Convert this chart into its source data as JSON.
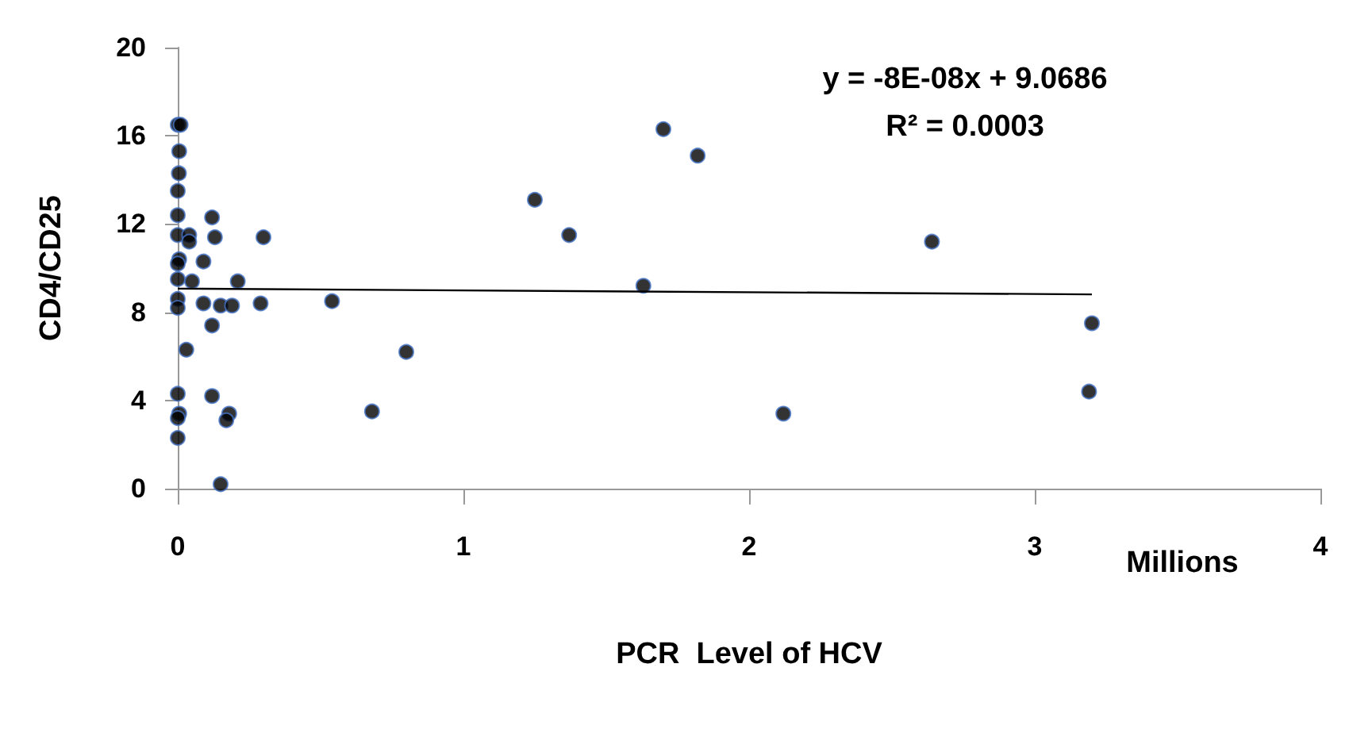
{
  "chart_data": {
    "type": "scatter",
    "xlabel": "PCR  Level of HCV",
    "ylabel": "CD4/CD25",
    "xlim": [
      0,
      4
    ],
    "xticks": [
      0,
      1,
      2,
      3,
      4
    ],
    "ylim": [
      0,
      20
    ],
    "yticks": [
      0,
      4,
      8,
      12,
      16,
      20
    ],
    "grid": false,
    "marker": "circle",
    "annotations": [
      "y = -8E-08x + 9.0686",
      "R² = 0.0003",
      "Millions"
    ],
    "series": [
      {
        "color": "#000000",
        "x": [
          0,
          0.01,
          0.005,
          0.004,
          0,
          0,
          0.12,
          0,
          0.04,
          0.04,
          0.13,
          0.3,
          0.005,
          0,
          0.09,
          0,
          0.05,
          0.21,
          0,
          0,
          0.09,
          0.15,
          0.19,
          0.29,
          0.54,
          0.12,
          0.03,
          0.8,
          0,
          0.12,
          0.005,
          0,
          0.18,
          0.17,
          0.68,
          0,
          0.15,
          1.25,
          1.37,
          1.7,
          1.82,
          1.63,
          2.12,
          2.64,
          3.2,
          3.19
        ],
        "values": [
          16.5,
          16.5,
          15.3,
          14.3,
          13.5,
          12.4,
          12.3,
          11.5,
          11.5,
          11.2,
          11.4,
          11.4,
          10.4,
          10.2,
          10.3,
          9.5,
          9.4,
          9.4,
          8.6,
          8.2,
          8.4,
          8.3,
          8.3,
          8.4,
          8.5,
          7.4,
          6.3,
          6.2,
          4.3,
          4.2,
          3.4,
          3.2,
          3.4,
          3.1,
          3.5,
          2.3,
          0.2,
          13.1,
          11.5,
          16.3,
          15.1,
          9.2,
          3.4,
          11.2,
          7.5,
          4.4
        ]
      },
      {
        "type": "line",
        "color": "#000000",
        "marker": "none",
        "x": [
          0,
          3.2
        ],
        "values": [
          9.07,
          8.81
        ]
      }
    ]
  }
}
